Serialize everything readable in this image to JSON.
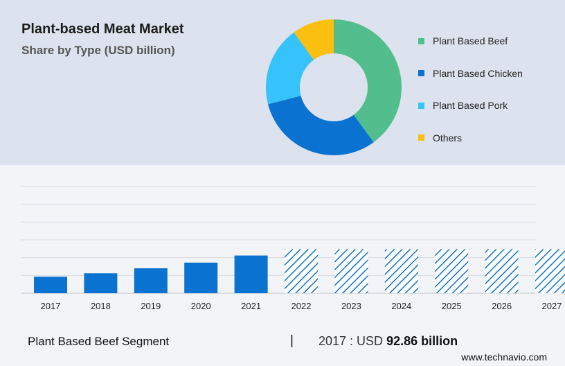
{
  "header": {
    "title": "Plant-based Meat Market",
    "subtitle": "Share by Type (USD billion)"
  },
  "chart_data": [
    {
      "type": "pie",
      "donut": true,
      "slices": [
        {
          "name": "Plant Based Beef",
          "value": 40,
          "color": "#52be8d"
        },
        {
          "name": "Plant Based Chicken",
          "value": 31,
          "color": "#0a72d1"
        },
        {
          "name": "Plant Based Pork",
          "value": 19,
          "color": "#36c2fa"
        },
        {
          "name": "Others",
          "value": 10,
          "color": "#fbbf10"
        }
      ],
      "legend": "right"
    },
    {
      "type": "bar",
      "categories": [
        "2017",
        "2018",
        "2019",
        "2020",
        "2021",
        "2022",
        "2023",
        "2024",
        "2025",
        "2026",
        "2027"
      ],
      "values": [
        92.86,
        112,
        140,
        172,
        212,
        248,
        248,
        248,
        248,
        248,
        248
      ],
      "forecast_from": "2022",
      "ylim": [
        0,
        600
      ],
      "grid": true,
      "colors": {
        "actual": "#0a72d1",
        "forecast": "#0a72d1"
      }
    }
  ],
  "footer": {
    "segment_label": "Plant Based Beef Segment",
    "divider": "|",
    "value_prefix": "2017 : USD",
    "value_bold": "92.86 billion",
    "source": "www.technavio.com"
  }
}
